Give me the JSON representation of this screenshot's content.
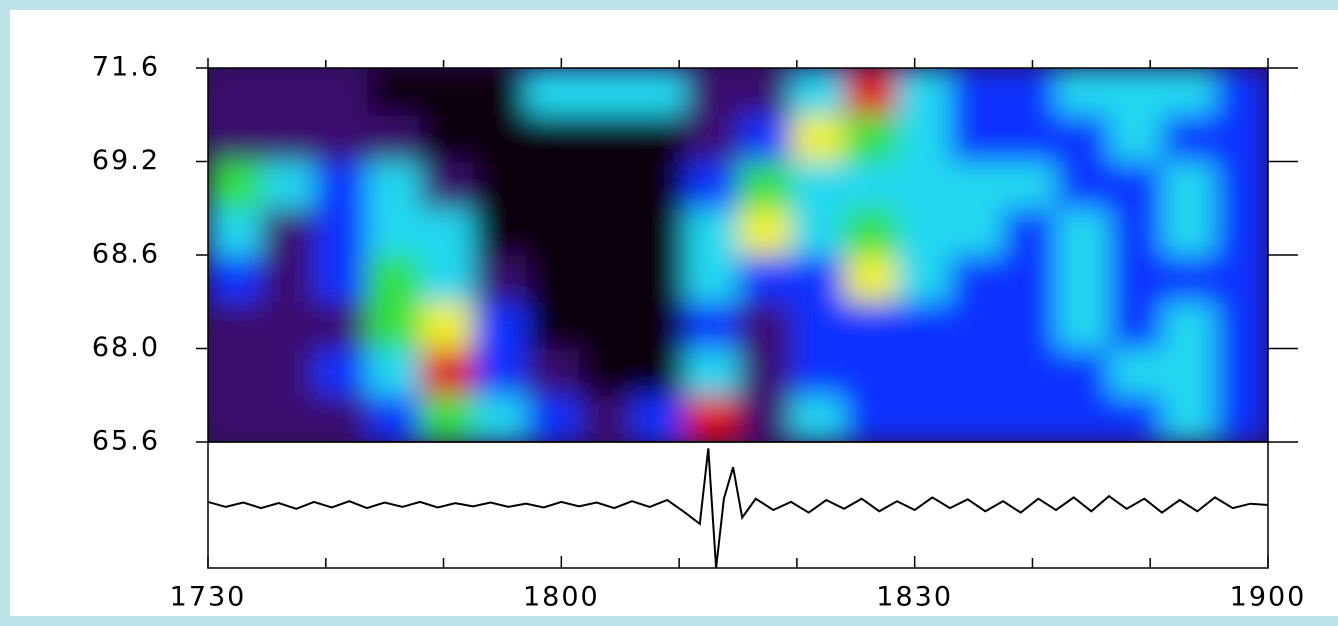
{
  "chart_data": {
    "type": "heatmap",
    "x_edges": [
      17.5,
      17.575,
      17.65,
      17.725,
      17.8,
      17.875,
      17.95,
      18.025,
      18.1,
      18.175,
      18.25,
      18.325,
      18.4,
      18.475,
      18.55,
      18.625,
      18.7,
      18.775,
      18.85,
      18.925,
      19
    ],
    "y_edges": [
      65.6,
      66.8,
      68.0,
      68.3,
      68.6,
      68.9,
      69.2,
      70.4,
      71.6
    ],
    "z": [
      [
        1,
        1,
        1,
        2,
        4,
        3,
        2,
        1,
        2,
        6,
        1,
        3,
        2,
        2,
        2,
        2,
        2,
        2,
        3,
        2
      ],
      [
        1,
        1,
        2,
        3,
        6,
        2,
        1,
        0,
        0,
        3,
        1,
        2,
        2,
        2,
        2,
        2,
        2,
        3,
        3,
        2
      ],
      [
        1,
        1,
        1,
        4,
        5,
        2,
        0,
        0,
        0,
        2,
        1,
        2,
        2,
        2,
        2,
        2,
        3,
        2,
        3,
        2
      ],
      [
        2,
        1,
        2,
        4,
        3,
        1,
        0,
        0,
        0,
        3,
        2,
        2,
        5,
        3,
        2,
        2,
        3,
        2,
        2,
        2
      ],
      [
        3,
        1,
        2,
        3,
        3,
        0,
        0,
        0,
        0,
        3,
        5,
        3,
        4,
        3,
        3,
        2,
        3,
        2,
        3,
        2
      ],
      [
        4,
        3,
        2,
        3,
        1,
        0,
        0,
        0,
        0,
        2,
        4,
        3,
        3,
        3,
        3,
        3,
        2,
        2,
        3,
        2
      ],
      [
        1,
        1,
        1,
        1,
        0,
        0,
        0,
        0,
        0,
        1,
        2,
        5,
        4,
        3,
        2,
        2,
        2,
        3,
        2,
        2
      ],
      [
        1,
        1,
        1,
        0,
        0,
        0,
        3,
        3,
        3,
        1,
        1,
        3,
        6,
        3,
        2,
        2,
        3,
        3,
        3,
        2
      ]
    ],
    "colorscale": [
      "#0a0010",
      "#3a0a6e",
      "#1030ff",
      "#20d8f0",
      "#30e040",
      "#f0f020",
      "#e01010"
    ],
    "xlim": [
      17.5,
      19
    ],
    "ylim": [
      65.6,
      71.6
    ],
    "yticks": [
      65.6,
      {
        "value": 68.0,
        "label": "68.0"
      },
      68.6,
      69.2,
      71.6
    ],
    "xticks": [
      {
        "value": 17.5,
        "label": "1730"
      },
      {
        "value": 18,
        "label": "1800"
      },
      {
        "value": 18.5,
        "label": "1830"
      },
      {
        "value": 19,
        "label": "1900"
      }
    ],
    "xminorticks": [
      17.6667,
      17.8333,
      18.1667,
      18.3333,
      18.6667,
      18.8333
    ],
    "trace": {
      "type": "line",
      "color": "#000000",
      "ylim": [
        -1,
        1
      ],
      "x": [
        17.5,
        17.525,
        17.55,
        17.575,
        17.6,
        17.625,
        17.65,
        17.675,
        17.7,
        17.725,
        17.75,
        17.775,
        17.8,
        17.825,
        17.85,
        17.875,
        17.9,
        17.925,
        17.95,
        17.975,
        18,
        18.025,
        18.05,
        18.075,
        18.1,
        18.125,
        18.15,
        18.175,
        18.196,
        18.208,
        18.219,
        18.23,
        18.243,
        18.256,
        18.275,
        18.3,
        18.325,
        18.35,
        18.375,
        18.4,
        18.425,
        18.45,
        18.475,
        18.5,
        18.525,
        18.55,
        18.575,
        18.6,
        18.625,
        18.65,
        18.675,
        18.7,
        18.725,
        18.75,
        18.775,
        18.8,
        18.825,
        18.85,
        18.875,
        18.9,
        18.925,
        18.95,
        18.975,
        19
      ],
      "values": [
        0.05,
        -0.03,
        0.04,
        -0.05,
        0.03,
        -0.06,
        0.05,
        -0.04,
        0.06,
        -0.05,
        0.04,
        -0.03,
        0.05,
        -0.04,
        0.03,
        -0.02,
        0.04,
        -0.03,
        0.02,
        -0.04,
        0.05,
        -0.02,
        0.04,
        -0.05,
        0.06,
        -0.03,
        0.08,
        -0.12,
        -0.3,
        0.9,
        -1.0,
        0.1,
        0.6,
        -0.2,
        0.1,
        -0.08,
        0.05,
        -0.12,
        0.08,
        -0.06,
        0.1,
        -0.1,
        0.06,
        -0.08,
        0.12,
        -0.05,
        0.09,
        -0.1,
        0.06,
        -0.12,
        0.1,
        -0.08,
        0.12,
        -0.1,
        0.14,
        -0.06,
        0.1,
        -0.12,
        0.08,
        -0.1,
        0.12,
        -0.05,
        0.02,
        0.0
      ]
    }
  }
}
